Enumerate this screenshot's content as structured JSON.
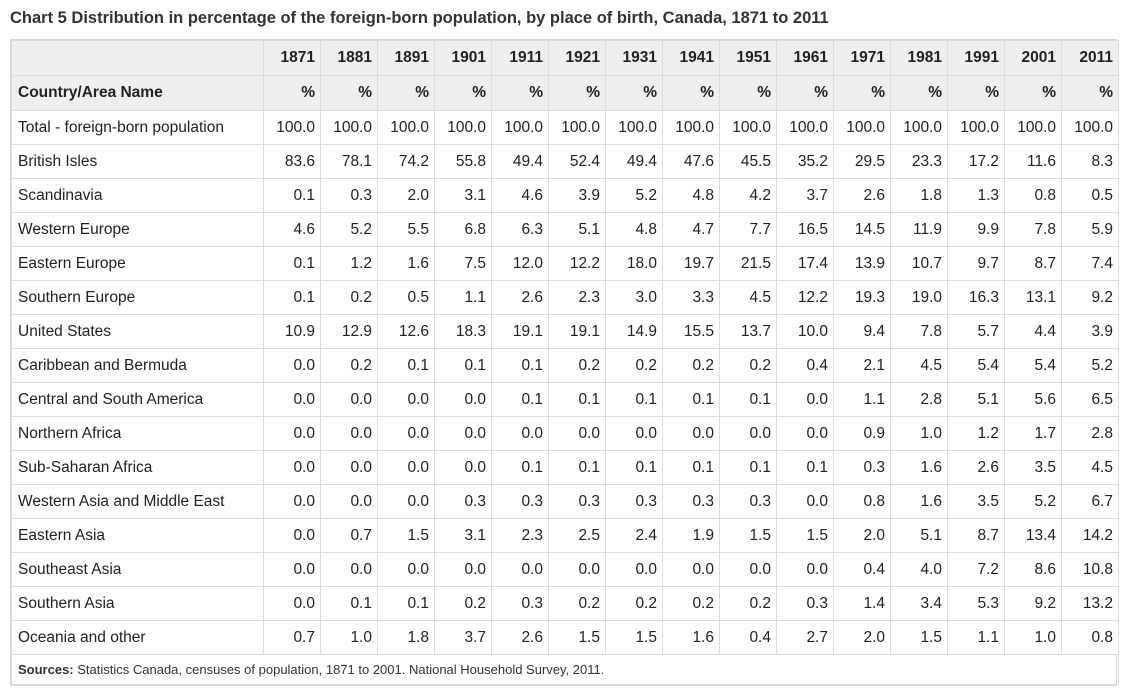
{
  "title": "Chart 5 Distribution in percentage of the foreign-born population, by place of birth, Canada, 1871 to 2011",
  "table": {
    "row_header_label": "Country/Area Name",
    "years": [
      "1871",
      "1881",
      "1891",
      "1901",
      "1911",
      "1921",
      "1931",
      "1941",
      "1951",
      "1961",
      "1971",
      "1981",
      "1991",
      "2001",
      "2011"
    ],
    "unit_label": "%",
    "rows": [
      {
        "name": "Total - foreign-born population",
        "values": [
          "100.0",
          "100.0",
          "100.0",
          "100.0",
          "100.0",
          "100.0",
          "100.0",
          "100.0",
          "100.0",
          "100.0",
          "100.0",
          "100.0",
          "100.0",
          "100.0",
          "100.0"
        ]
      },
      {
        "name": "British Isles",
        "values": [
          "83.6",
          "78.1",
          "74.2",
          "55.8",
          "49.4",
          "52.4",
          "49.4",
          "47.6",
          "45.5",
          "35.2",
          "29.5",
          "23.3",
          "17.2",
          "11.6",
          "8.3"
        ]
      },
      {
        "name": "Scandinavia",
        "values": [
          "0.1",
          "0.3",
          "2.0",
          "3.1",
          "4.6",
          "3.9",
          "5.2",
          "4.8",
          "4.2",
          "3.7",
          "2.6",
          "1.8",
          "1.3",
          "0.8",
          "0.5"
        ]
      },
      {
        "name": "Western Europe",
        "values": [
          "4.6",
          "5.2",
          "5.5",
          "6.8",
          "6.3",
          "5.1",
          "4.8",
          "4.7",
          "7.7",
          "16.5",
          "14.5",
          "11.9",
          "9.9",
          "7.8",
          "5.9"
        ]
      },
      {
        "name": "Eastern Europe",
        "values": [
          "0.1",
          "1.2",
          "1.6",
          "7.5",
          "12.0",
          "12.2",
          "18.0",
          "19.7",
          "21.5",
          "17.4",
          "13.9",
          "10.7",
          "9.7",
          "8.7",
          "7.4"
        ]
      },
      {
        "name": "Southern Europe",
        "values": [
          "0.1",
          "0.2",
          "0.5",
          "1.1",
          "2.6",
          "2.3",
          "3.0",
          "3.3",
          "4.5",
          "12.2",
          "19.3",
          "19.0",
          "16.3",
          "13.1",
          "9.2"
        ]
      },
      {
        "name": "United States",
        "values": [
          "10.9",
          "12.9",
          "12.6",
          "18.3",
          "19.1",
          "19.1",
          "14.9",
          "15.5",
          "13.7",
          "10.0",
          "9.4",
          "7.8",
          "5.7",
          "4.4",
          "3.9"
        ]
      },
      {
        "name": "Caribbean and Bermuda",
        "values": [
          "0.0",
          "0.2",
          "0.1",
          "0.1",
          "0.1",
          "0.2",
          "0.2",
          "0.2",
          "0.2",
          "0.4",
          "2.1",
          "4.5",
          "5.4",
          "5.4",
          "5.2"
        ]
      },
      {
        "name": "Central and South America",
        "values": [
          "0.0",
          "0.0",
          "0.0",
          "0.0",
          "0.1",
          "0.1",
          "0.1",
          "0.1",
          "0.1",
          "0.0",
          "1.1",
          "2.8",
          "5.1",
          "5.6",
          "6.5"
        ]
      },
      {
        "name": "Northern Africa",
        "values": [
          "0.0",
          "0.0",
          "0.0",
          "0.0",
          "0.0",
          "0.0",
          "0.0",
          "0.0",
          "0.0",
          "0.0",
          "0.9",
          "1.0",
          "1.2",
          "1.7",
          "2.8"
        ]
      },
      {
        "name": "Sub-Saharan Africa",
        "values": [
          "0.0",
          "0.0",
          "0.0",
          "0.0",
          "0.1",
          "0.1",
          "0.1",
          "0.1",
          "0.1",
          "0.1",
          "0.3",
          "1.6",
          "2.6",
          "3.5",
          "4.5"
        ]
      },
      {
        "name": "Western Asia and Middle East",
        "values": [
          "0.0",
          "0.0",
          "0.0",
          "0.3",
          "0.3",
          "0.3",
          "0.3",
          "0.3",
          "0.3",
          "0.0",
          "0.8",
          "1.6",
          "3.5",
          "5.2",
          "6.7"
        ]
      },
      {
        "name": "Eastern Asia",
        "values": [
          "0.0",
          "0.7",
          "1.5",
          "3.1",
          "2.3",
          "2.5",
          "2.4",
          "1.9",
          "1.5",
          "1.5",
          "2.0",
          "5.1",
          "8.7",
          "13.4",
          "14.2"
        ]
      },
      {
        "name": "Southeast Asia",
        "values": [
          "0.0",
          "0.0",
          "0.0",
          "0.0",
          "0.0",
          "0.0",
          "0.0",
          "0.0",
          "0.0",
          "0.0",
          "0.4",
          "4.0",
          "7.2",
          "8.6",
          "10.8"
        ]
      },
      {
        "name": "Southern Asia",
        "values": [
          "0.0",
          "0.1",
          "0.1",
          "0.2",
          "0.3",
          "0.2",
          "0.2",
          "0.2",
          "0.2",
          "0.3",
          "1.4",
          "3.4",
          "5.3",
          "9.2",
          "13.2"
        ]
      },
      {
        "name": "Oceania and other",
        "values": [
          "0.7",
          "1.0",
          "1.8",
          "3.7",
          "2.6",
          "1.5",
          "1.5",
          "1.6",
          "0.4",
          "2.7",
          "2.0",
          "1.5",
          "1.1",
          "1.0",
          "0.8"
        ]
      }
    ]
  },
  "footnote": {
    "label": "Sources:",
    "text": " Statistics Canada, censuses of population, 1871 to 2001. National Household Survey, 2011."
  }
}
